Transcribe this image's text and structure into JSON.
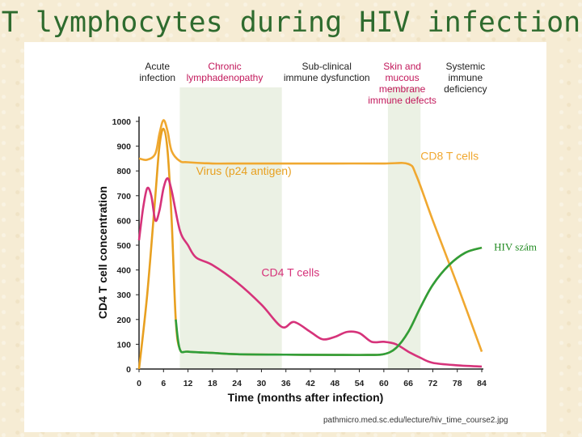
{
  "slide": {
    "title": "T lymphocytes during HIV infection",
    "source": "pathmicro.med.sc.edu/lecture/hiv_time_course2.jpg"
  },
  "colors": {
    "cd8": "#f0a830",
    "virus": "#e8a020",
    "cd4": "#d6337a",
    "hiv": "#2f9e3a",
    "shade": "#e8eedf"
  },
  "chart_data": {
    "type": "line",
    "title": "",
    "xlabel": "Time (months after infection)",
    "ylabel": "CD4 T cell concentration",
    "xlim": [
      0,
      84
    ],
    "ylim": [
      0,
      1000
    ],
    "xticks": [
      0,
      6,
      12,
      18,
      24,
      30,
      36,
      42,
      48,
      54,
      60,
      66,
      72,
      78,
      84
    ],
    "yticks": [
      0,
      100,
      200,
      300,
      400,
      500,
      600,
      700,
      800,
      900,
      1000
    ],
    "phases": [
      {
        "lines": [
          "Acute",
          "infection"
        ],
        "x": 4.5,
        "highlight": false
      },
      {
        "lines": [
          "Chronic",
          "lymphadenopathy"
        ],
        "x": 21,
        "highlight": true
      },
      {
        "lines": [
          "Sub-clinical",
          "immune dysfunction"
        ],
        "x": 46,
        "highlight": false
      },
      {
        "lines": [
          "Skin and",
          "mucous",
          "membrane",
          "immune defects"
        ],
        "x": 64.5,
        "highlight": true
      },
      {
        "lines": [
          "Systemic",
          "immune",
          "deficiency"
        ],
        "x": 80,
        "highlight": false
      }
    ],
    "shaded_regions": [
      [
        10,
        35
      ],
      [
        61,
        69
      ]
    ],
    "series": [
      {
        "name": "CD8 T cells",
        "color_key": "cd8",
        "x": [
          0,
          2,
          4,
          5,
          6,
          7,
          8,
          10,
          12,
          18,
          24,
          30,
          36,
          48,
          60,
          66,
          68,
          72,
          78,
          84
        ],
        "y": [
          850,
          845,
          870,
          950,
          1005,
          960,
          880,
          840,
          835,
          830,
          830,
          830,
          830,
          830,
          830,
          828,
          780,
          600,
          340,
          70
        ]
      },
      {
        "name": "Virus (p24 antigen)",
        "color_key": "virus",
        "x": [
          0,
          2,
          4,
          5,
          6,
          7,
          8,
          9,
          10,
          12,
          18,
          24,
          36,
          48,
          56,
          60,
          63,
          66,
          69,
          72,
          76,
          80,
          84
        ],
        "y": [
          0,
          300,
          700,
          900,
          970,
          880,
          600,
          200,
          80,
          70,
          65,
          60,
          58,
          57,
          57,
          60,
          85,
          150,
          250,
          340,
          420,
          470,
          490
        ]
      },
      {
        "name": "CD4 T cells",
        "color_key": "cd4",
        "x": [
          0,
          1,
          2,
          3,
          4,
          5,
          6,
          7,
          8,
          10,
          12,
          14,
          18,
          24,
          30,
          35,
          38,
          42,
          45,
          48,
          51,
          54,
          57,
          60,
          63,
          66,
          69,
          72,
          78,
          84
        ],
        "y": [
          520,
          650,
          730,
          700,
          600,
          640,
          730,
          770,
          720,
          560,
          500,
          450,
          420,
          350,
          260,
          170,
          190,
          150,
          120,
          130,
          150,
          145,
          110,
          110,
          100,
          70,
          45,
          25,
          15,
          10
        ]
      }
    ],
    "series_labels": [
      {
        "text": "Virus (p24 antigen)",
        "color_key": "virus",
        "x": 14,
        "y": 785
      },
      {
        "text": "CD8 T cells",
        "color_key": "cd8",
        "x": 69,
        "y": 845
      },
      {
        "text": "CD4 T cells",
        "color_key": "cd4",
        "x": 30,
        "y": 375
      }
    ],
    "annotation": {
      "text": "HIV szám",
      "color_key": "hiv",
      "x": 87,
      "y": 478
    }
  }
}
